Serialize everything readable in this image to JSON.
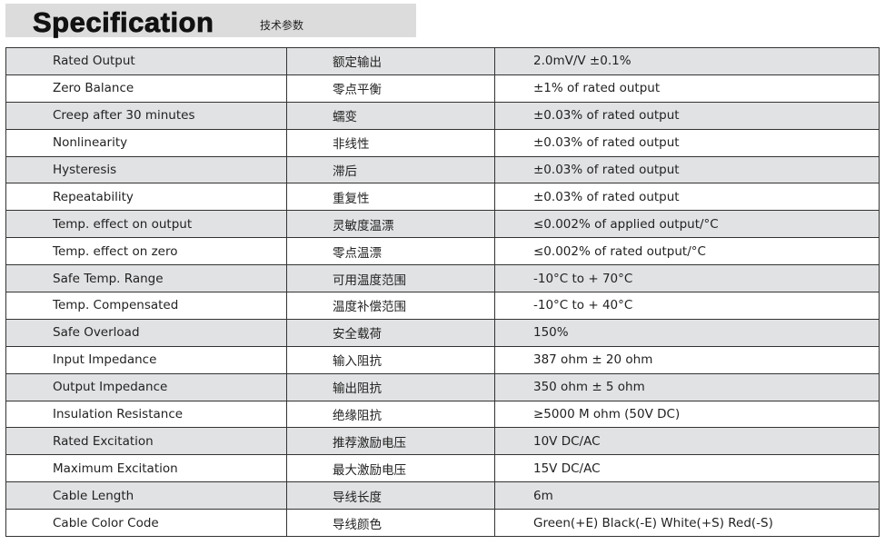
{
  "header": {
    "title": "Specification",
    "subtitle": "技术参数"
  },
  "rows": [
    [
      "Rated Output",
      "额定输出",
      "2.0mV/V ±0.1%"
    ],
    [
      "Zero Balance",
      "零点平衡",
      "±1% of rated output"
    ],
    [
      "Creep after 30 minutes",
      "蠕变",
      "±0.03% of rated output"
    ],
    [
      "Nonlinearity",
      "非线性",
      "±0.03% of rated output"
    ],
    [
      "Hysteresis",
      "滞后",
      "±0.03% of rated output"
    ],
    [
      "Repeatability",
      "重复性",
      "±0.03% of rated output"
    ],
    [
      "Temp. effect on output",
      "灵敏度温漂",
      "≤0.002% of applied output/°C"
    ],
    [
      "Temp. effect on zero",
      "零点温漂",
      "≤0.002% of rated output/°C"
    ],
    [
      "Safe Temp. Range",
      "可用温度范围",
      "-10°C to + 70°C"
    ],
    [
      "Temp. Compensated",
      "温度补偿范围",
      "-10°C to + 40°C"
    ],
    [
      "Safe Overload",
      "安全载荷",
      "150%"
    ],
    [
      "Input Impedance",
      "输入阻抗",
      "387 ohm ± 20 ohm"
    ],
    [
      "Output Impedance",
      "输出阻抗",
      "350 ohm ± 5 ohm"
    ],
    [
      "Insulation Resistance",
      "绝缘阻抗",
      "≥5000 M ohm (50V DC)"
    ],
    [
      "Rated Excitation",
      "推荐激励电压",
      "10V DC/AC"
    ],
    [
      "Maximum Excitation",
      "最大激励电压",
      "15V DC/AC"
    ],
    [
      "Cable Length",
      "导线长度",
      "6m"
    ],
    [
      "Cable Color Code",
      "导线颜色",
      "Green(+E) Black(-E) White(+S) Red(-S)"
    ]
  ]
}
